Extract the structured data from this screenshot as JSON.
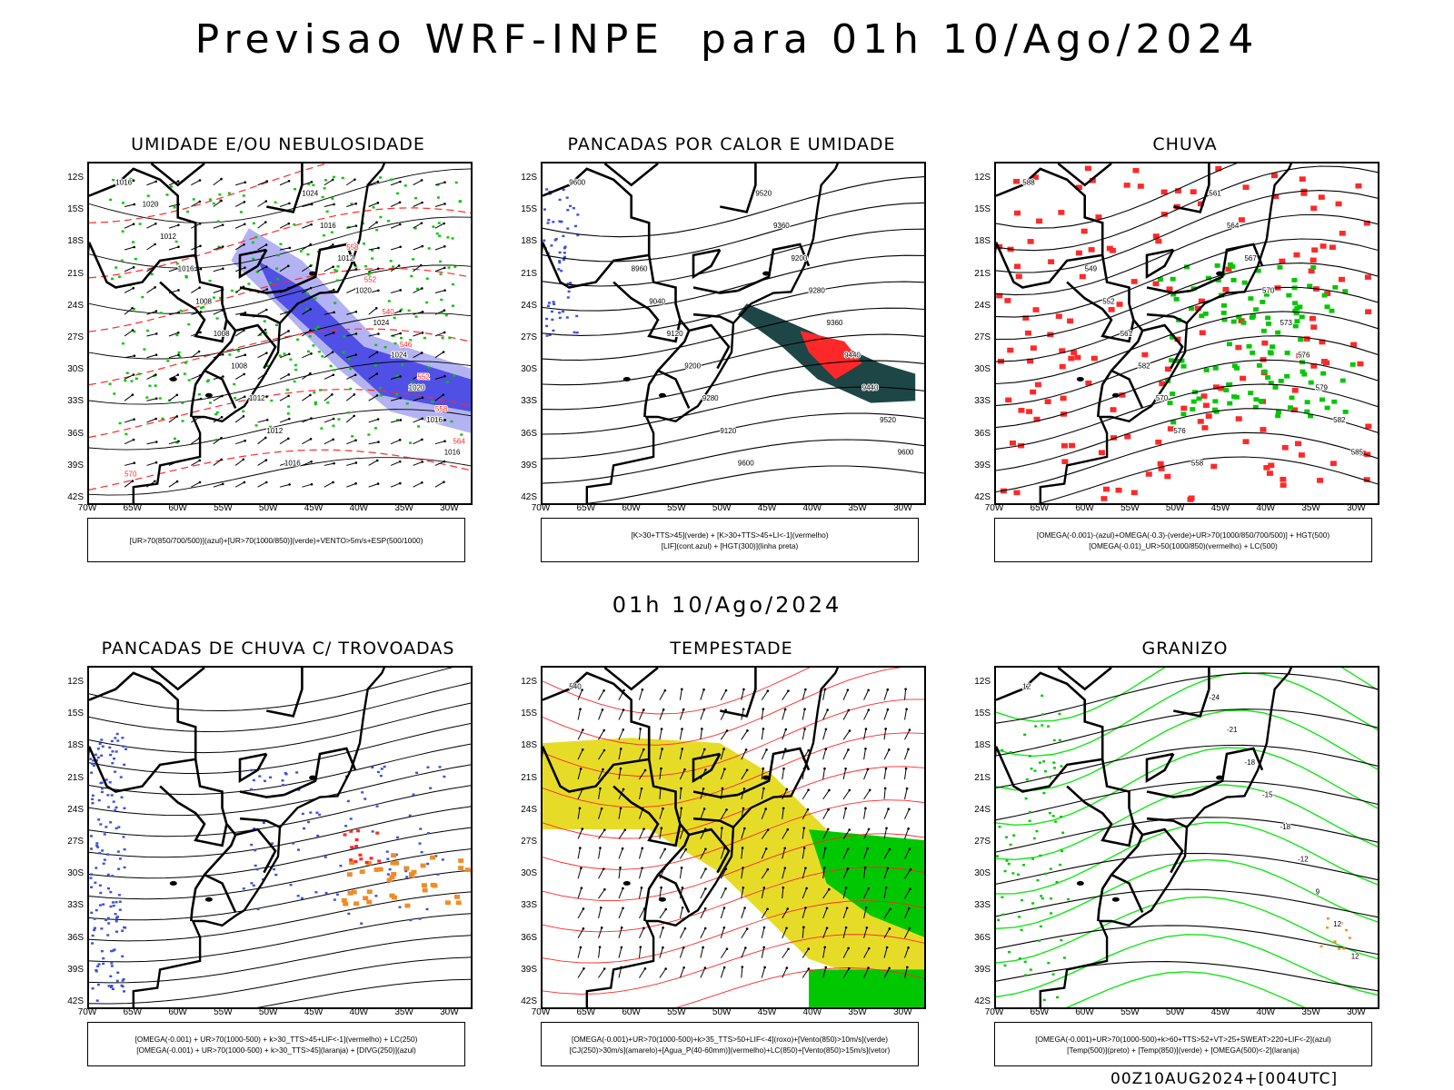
{
  "main_title": "Previsao WRF-INPE  para 01h 10/Ago/2024",
  "mid_title": "01h 10/Ago/2024",
  "footer_stamp": "00Z10AUG2024+[004UTC]",
  "axes": {
    "lat_labels": [
      "12S",
      "15S",
      "18S",
      "21S",
      "24S",
      "27S",
      "30S",
      "33S",
      "36S",
      "39S",
      "42S"
    ],
    "lon_labels": [
      "70W",
      "65W",
      "60W",
      "55W",
      "50W",
      "45W",
      "40W",
      "35W",
      "30W"
    ]
  },
  "panels": [
    {
      "id": "umidade",
      "title": "UMIDADE E/OU NEBULOSIDADE",
      "legend": [
        "[UR>70(850/700/500)](azul)+[UR>70(1000/850)](verde)+VENTO>5m/s+ESP(500/1000)"
      ],
      "contour_labels": [
        "1016",
        "1016",
        "1016",
        "1020",
        "1024",
        "1024",
        "1020",
        "1012",
        "1016",
        "1024",
        "1016",
        "1012",
        "1012",
        "1008",
        "1008",
        "1008",
        "1016",
        "1012",
        "1020",
        "570",
        "564",
        "558",
        "552",
        "546",
        "540",
        "552",
        "558"
      ]
    },
    {
      "id": "pancadas-calor",
      "title": "PANCADAS POR CALOR E UMIDADE",
      "legend": [
        "[K>30+TTS>45](verde) + [K>30+TTS>45+LI<-1](vermelho)",
        "[LIF](cont.azul) + [HGT(300)](linha preta)"
      ],
      "contour_labels": [
        "9600",
        "9600",
        "9520",
        "9440",
        "9440",
        "9360",
        "9280",
        "9200",
        "9360",
        "9520",
        "9600",
        "9120",
        "9280",
        "9200",
        "9120",
        "9040",
        "8960"
      ]
    },
    {
      "id": "chuva",
      "title": "CHUVA",
      "legend": [
        "[OMEGA(-0.001)-(azul)+OMEGA(-0.3)-(verde)+UR>70(1000/850/700/500)] + HGT(500)",
        "[OMEGA(-0.01)_UR>50(1000/850)(vermelho) + LC(500)"
      ],
      "contour_labels": [
        "588",
        "585",
        "582",
        "579",
        "576",
        "573",
        "570",
        "567",
        "564",
        "561",
        "558",
        "576",
        "570",
        "582",
        "561",
        "552",
        "549"
      ]
    },
    {
      "id": "pancadas-trovoadas",
      "title": "PANCADAS DE CHUVA C/ TROVOADAS",
      "legend": [
        "[OMEGA(-0.001) + UR>70(1000-500) + k>30_TTS>45+LIF<-1](vermelho) + LC(250)",
        "[OMEGA(-0.001) + UR>70(1000-500) + k>30_TTS>45](laranja) + [DIVG(250)](azul)"
      ],
      "contour_labels": []
    },
    {
      "id": "tempestade",
      "title": "TEMPESTADE",
      "legend": [
        "[OMEGA(-0.001)+UR>70(1000-500)+k>35_TTS>50+LIF<-4](roxo)+[Vento(850)>10m/s](verde)",
        "[CJ(250)>30m/s](amarelo)+[Agua_P(40-60mm)](vermelho)+LC(850)+[Vento(850)>15m/s](vetor)"
      ],
      "contour_labels": [
        "540"
      ]
    },
    {
      "id": "granizo",
      "title": "GRANIZO",
      "legend": [
        "[OMEGA(-0.001)+UR>70(1000-500)+k>60+TTS>52+VT>25+SWEAT>220+LIF<-2](azul)",
        "[Temp(500)](preto) + [Temp(850)](verde) + [OMEGA(500)<-2](laranja)"
      ],
      "contour_labels": [
        "12",
        "12",
        "12",
        "9",
        "-12",
        "-18",
        "-15",
        "-18",
        "-21",
        "-24"
      ]
    }
  ],
  "colors": {
    "blue_shade": "#5050e6",
    "light_blue": "#a0a0f0",
    "green": "#00c800",
    "bright_green": "#14e614",
    "red": "#ff2828",
    "dark_teal": "#1e4646",
    "yellow": "#e6dc28",
    "orange": "#f08c28",
    "black": "#000000"
  }
}
